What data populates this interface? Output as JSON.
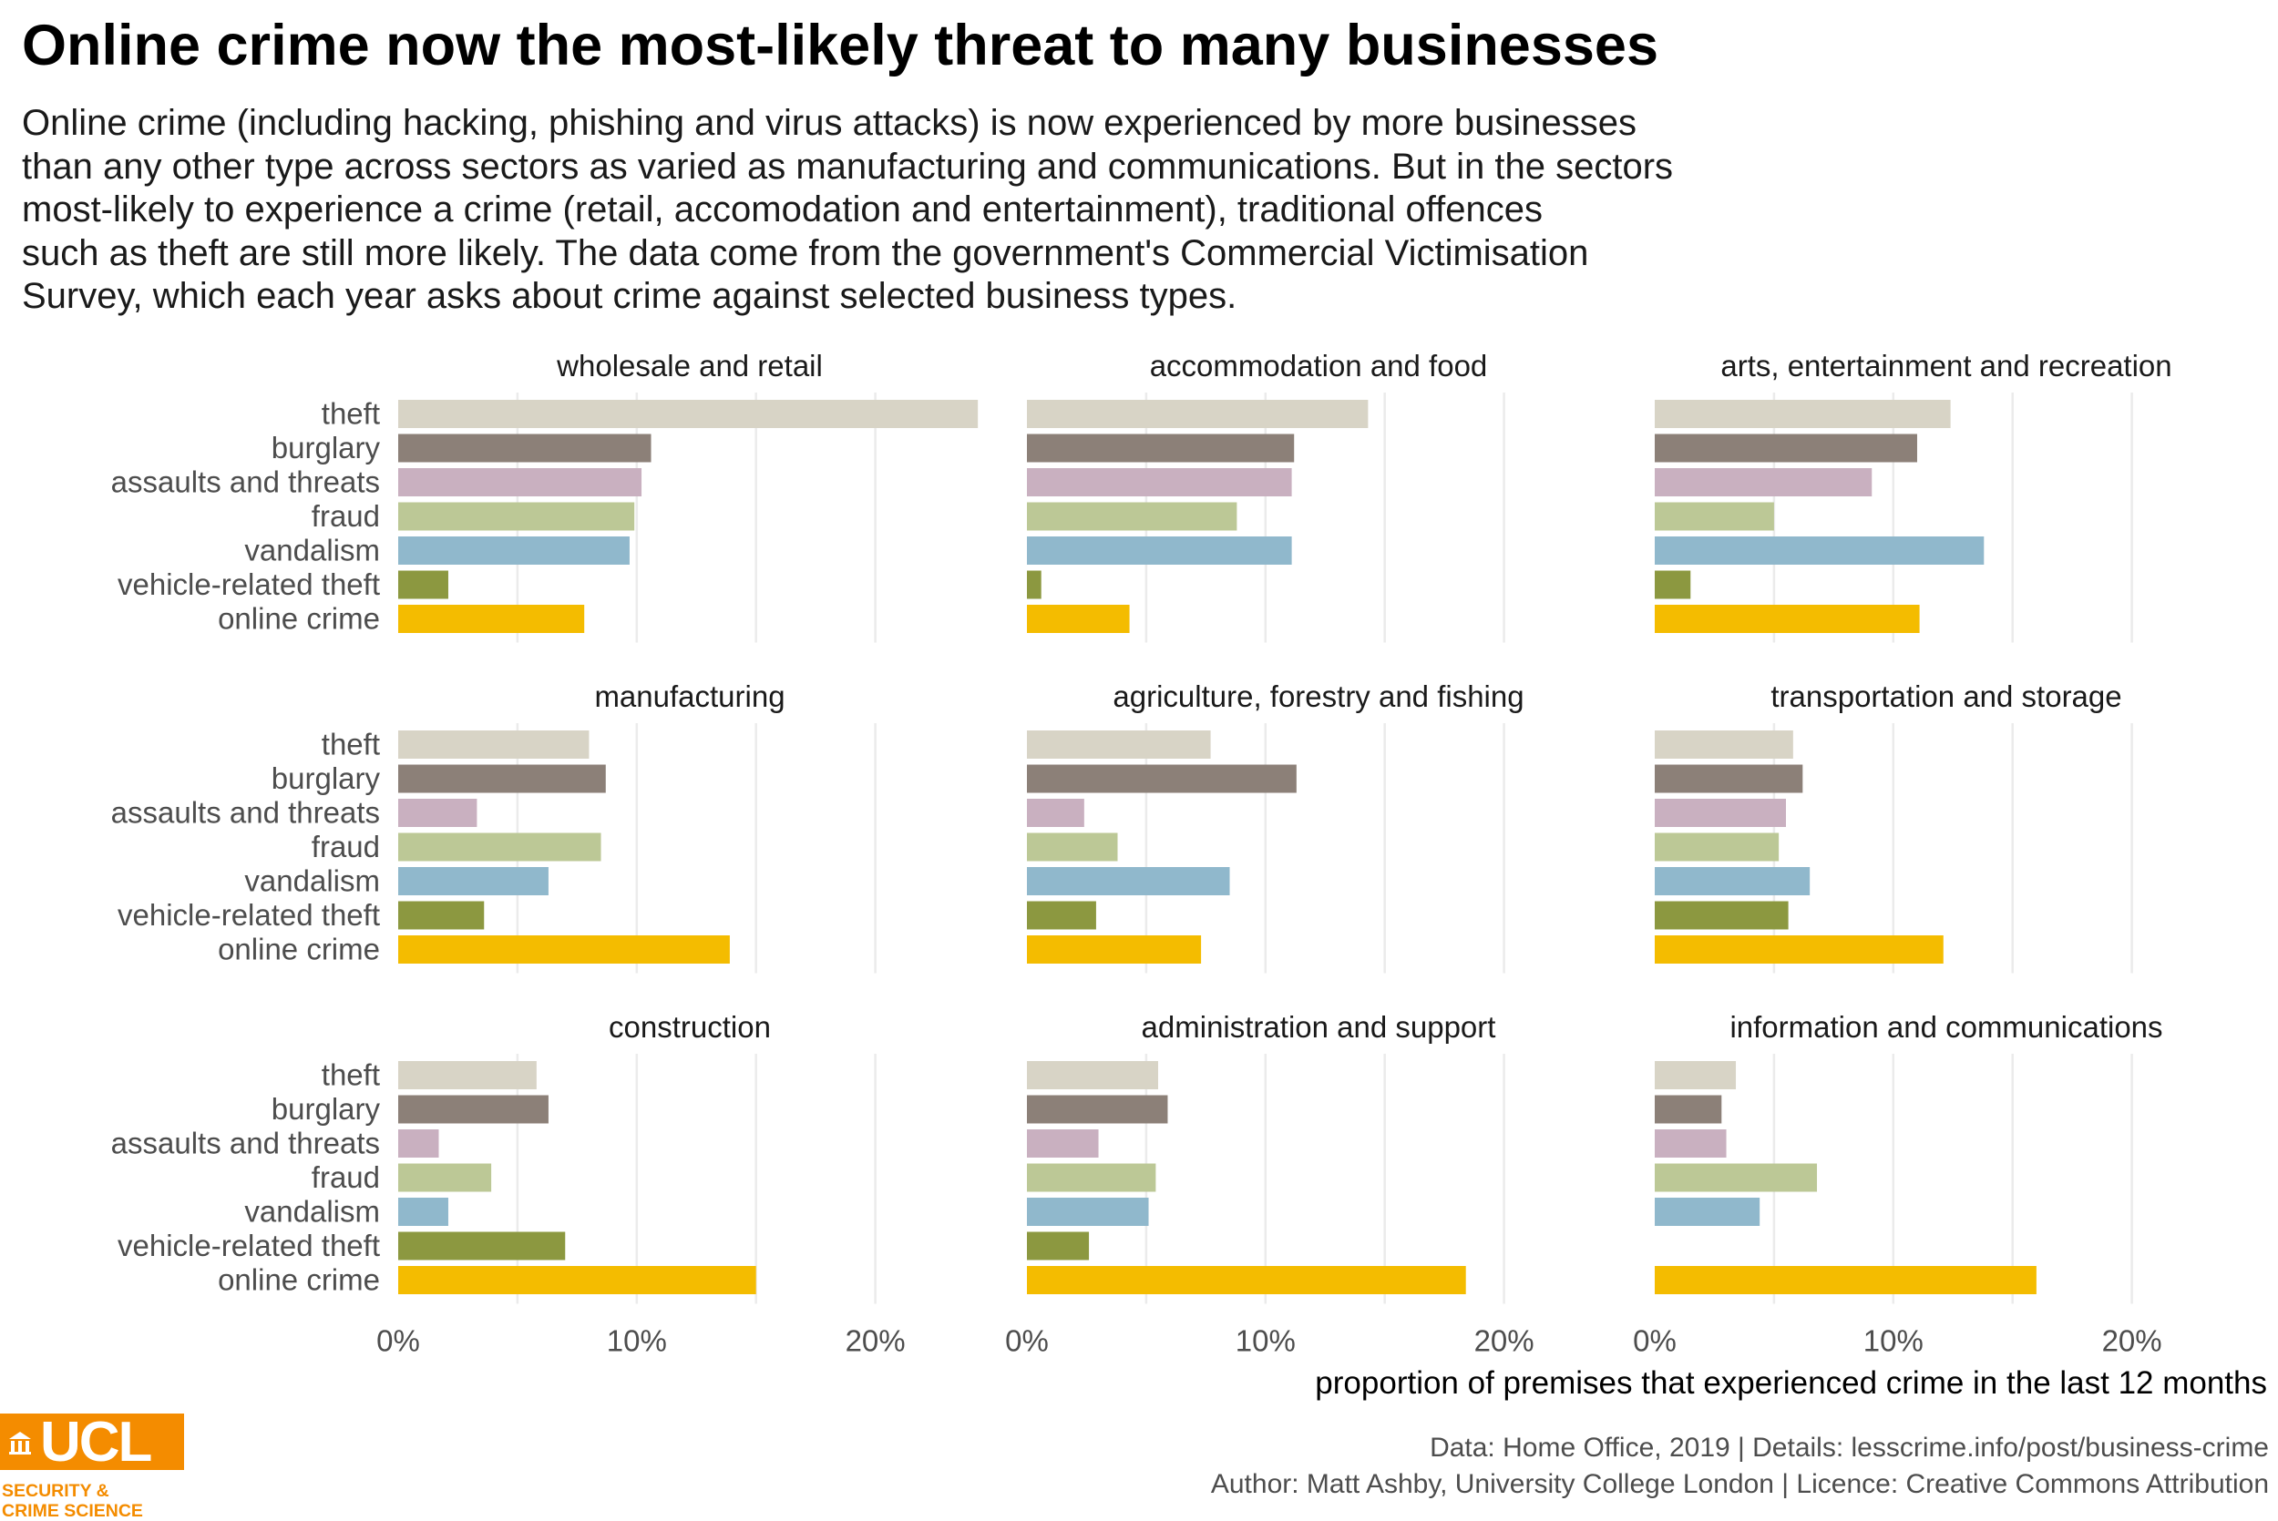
{
  "title": "Online crime now the most-likely threat to many businesses",
  "subtitle_lines": [
    "Online crime (including hacking, phishing and virus attacks) is now experienced by more businesses",
    "than any other type across sectors as varied as manufacturing and communications. But in the sectors",
    "most-likely to experience a crime (retail, accomodation and entertainment), traditional offences",
    "such as theft are still more likely. The data come from the government's Commercial Victimisation",
    "Survey, which each year asks about crime against selected business types."
  ],
  "caption": {
    "line1": "Data: Home Office, 2019 |  Details: lesscrime.info/post/business-crime",
    "line2": "Author: Matt Ashby, University College London |  Licence: Creative Commons Attribution"
  },
  "logo": {
    "name": "UCL",
    "sub_line1": "SECURITY &",
    "sub_line2": "CRIME SCIENCE",
    "color": "#f48c00"
  },
  "chart_data": {
    "type": "bar",
    "orientation": "horizontal",
    "xlabel": "proportion of premises that experienced crime in the last 12 months",
    "xlim": [
      0,
      0.26
    ],
    "x_ticks": [
      {
        "value": 0,
        "label": "0%"
      },
      {
        "value": 0.1,
        "label": "10%"
      },
      {
        "value": 0.2,
        "label": "20%"
      }
    ],
    "grid": true,
    "legend": "none",
    "categories": [
      "theft",
      "burglary",
      "assaults and threats",
      "fraud",
      "vandalism",
      "vehicle-related theft",
      "online crime"
    ],
    "colors": [
      "#d8d4c6",
      "#8c8078",
      "#c9b0c0",
      "#bcc896",
      "#90b8cc",
      "#8c9840",
      "#f4bc00"
    ],
    "panels": [
      {
        "title": "wholesale and retail",
        "values": [
          0.243,
          0.106,
          0.102,
          0.099,
          0.097,
          0.021,
          0.078
        ]
      },
      {
        "title": "accommodation and food",
        "values": [
          0.143,
          0.112,
          0.111,
          0.088,
          0.111,
          0.006,
          0.043
        ]
      },
      {
        "title": "arts, entertainment and recreation",
        "values": [
          0.124,
          0.11,
          0.091,
          0.05,
          0.138,
          0.015,
          0.111
        ]
      },
      {
        "title": "manufacturing",
        "values": [
          0.08,
          0.087,
          0.033,
          0.085,
          0.063,
          0.036,
          0.139
        ]
      },
      {
        "title": "agriculture, forestry and fishing",
        "values": [
          0.077,
          0.113,
          0.024,
          0.038,
          0.085,
          0.029,
          0.073
        ]
      },
      {
        "title": "transportation and storage",
        "values": [
          0.058,
          0.062,
          0.055,
          0.052,
          0.065,
          0.056,
          0.121
        ]
      },
      {
        "title": "construction",
        "values": [
          0.058,
          0.063,
          0.017,
          0.039,
          0.021,
          0.07,
          0.15
        ]
      },
      {
        "title": "administration and support",
        "values": [
          0.055,
          0.059,
          0.03,
          0.054,
          0.051,
          0.026,
          0.184
        ]
      },
      {
        "title": "information and communications",
        "values": [
          0.034,
          0.028,
          0.03,
          0.068,
          0.044,
          null,
          0.16
        ]
      }
    ]
  }
}
